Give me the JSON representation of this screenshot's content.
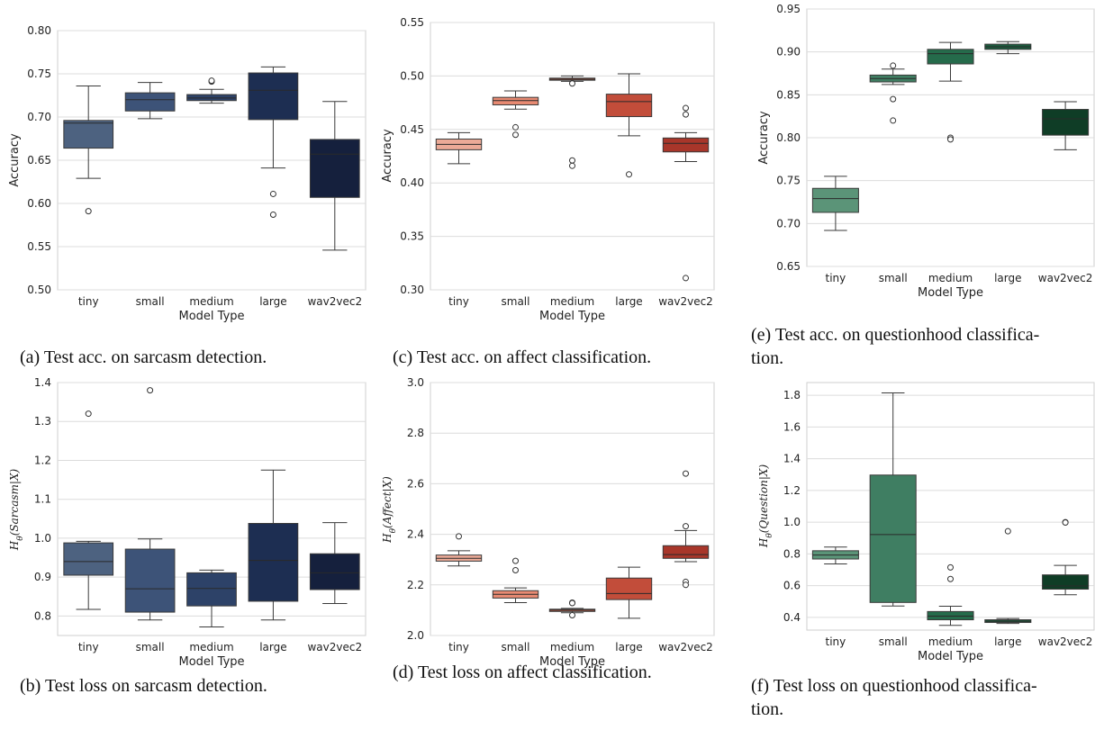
{
  "figure": {
    "captions": [
      {
        "id": "a",
        "lines": [
          "(a) Test acc. on sarcasm detection."
        ]
      },
      {
        "id": "b",
        "lines": [
          "(b) Test loss on sarcasm detection."
        ]
      },
      {
        "id": "c",
        "lines": [
          "(c) Test acc. on affect classification."
        ]
      },
      {
        "id": "d",
        "lines": [
          "(d) Test loss on affect classification."
        ]
      },
      {
        "id": "e",
        "lines": [
          "(e) Test acc. on questionhood classifica-",
          "tion."
        ]
      },
      {
        "id": "f",
        "lines": [
          "(f) Test loss on questionhood classifica-",
          "tion."
        ]
      }
    ]
  },
  "chart_data": [
    {
      "id": "a",
      "type": "box",
      "xlabel": "Model Type",
      "ylabel": "Accuracy",
      "ylim": [
        0.5,
        0.8
      ],
      "yticks": [
        0.5,
        0.55,
        0.6,
        0.65,
        0.7,
        0.75,
        0.8
      ],
      "ytick_labels": [
        "0.50",
        "0.55",
        "0.60",
        "0.65",
        "0.70",
        "0.75",
        "0.80"
      ],
      "grid": true,
      "categories": [
        "tiny",
        "small",
        "medium",
        "large",
        "wav2vec2"
      ],
      "colors": [
        "#4d6280",
        "#3d5378",
        "#2d4268",
        "#1d2e52",
        "#15203d"
      ],
      "boxes": [
        {
          "whislo": 0.629,
          "q1": 0.664,
          "med": 0.693,
          "q3": 0.696,
          "whishi": 0.736,
          "fliers": [
            0.591
          ]
        },
        {
          "whislo": 0.698,
          "q1": 0.707,
          "med": 0.72,
          "q3": 0.728,
          "whishi": 0.74,
          "fliers": []
        },
        {
          "whislo": 0.716,
          "q1": 0.719,
          "med": 0.722,
          "q3": 0.726,
          "whishi": 0.732,
          "fliers": [
            0.741,
            0.742
          ]
        },
        {
          "whislo": 0.641,
          "q1": 0.697,
          "med": 0.731,
          "q3": 0.751,
          "whishi": 0.758,
          "fliers": [
            0.611,
            0.587
          ]
        },
        {
          "whislo": 0.546,
          "q1": 0.607,
          "med": 0.657,
          "q3": 0.674,
          "whishi": 0.718,
          "fliers": []
        }
      ]
    },
    {
      "id": "b",
      "type": "box",
      "xlabel": "Model Type",
      "ylabel": "H_θ(Sarcasm|X)",
      "ylim": [
        0.75,
        1.4
      ],
      "yticks": [
        0.8,
        0.9,
        1.0,
        1.1,
        1.2,
        1.3,
        1.4
      ],
      "ytick_labels": [
        "0.8",
        "0.9",
        "1.0",
        "1.1",
        "1.2",
        "1.3",
        "1.4"
      ],
      "grid": true,
      "categories": [
        "tiny",
        "small",
        "medium",
        "large",
        "wav2vec2"
      ],
      "colors": [
        "#4d6280",
        "#3d5378",
        "#2d4268",
        "#1d2e52",
        "#15203d"
      ],
      "boxes": [
        {
          "whislo": 0.817,
          "q1": 0.905,
          "med": 0.94,
          "q3": 0.988,
          "whishi": 0.992,
          "fliers": [
            1.32
          ]
        },
        {
          "whislo": 0.79,
          "q1": 0.81,
          "med": 0.87,
          "q3": 0.972,
          "whishi": 0.998,
          "fliers": [
            1.38
          ]
        },
        {
          "whislo": 0.772,
          "q1": 0.826,
          "med": 0.871,
          "q3": 0.911,
          "whishi": 0.918,
          "fliers": []
        },
        {
          "whislo": 0.79,
          "q1": 0.838,
          "med": 0.943,
          "q3": 1.038,
          "whishi": 1.175,
          "fliers": []
        },
        {
          "whislo": 0.832,
          "q1": 0.868,
          "med": 0.911,
          "q3": 0.96,
          "whishi": 1.04,
          "fliers": []
        }
      ]
    },
    {
      "id": "c",
      "type": "box",
      "xlabel": "Model Type",
      "ylabel": "Accuracy",
      "ylim": [
        0.3,
        0.55
      ],
      "yticks": [
        0.3,
        0.35,
        0.4,
        0.45,
        0.5,
        0.55
      ],
      "ytick_labels": [
        "0.30",
        "0.35",
        "0.40",
        "0.45",
        "0.50",
        "0.55"
      ],
      "grid": true,
      "categories": [
        "tiny",
        "small",
        "medium",
        "large",
        "wav2vec2"
      ],
      "colors": [
        "#ecaa97",
        "#e88a72",
        "#d7664c",
        "#c24d3a",
        "#a8362a"
      ],
      "boxes": [
        {
          "whislo": 0.418,
          "q1": 0.431,
          "med": 0.436,
          "q3": 0.441,
          "whishi": 0.447,
          "fliers": []
        },
        {
          "whislo": 0.469,
          "q1": 0.473,
          "med": 0.477,
          "q3": 0.48,
          "whishi": 0.486,
          "fliers": [
            0.452,
            0.445
          ]
        },
        {
          "whislo": 0.495,
          "q1": 0.496,
          "med": 0.497,
          "q3": 0.498,
          "whishi": 0.5,
          "fliers": [
            0.493,
            0.421,
            0.416
          ]
        },
        {
          "whislo": 0.444,
          "q1": 0.462,
          "med": 0.476,
          "q3": 0.483,
          "whishi": 0.502,
          "fliers": [
            0.408
          ]
        },
        {
          "whislo": 0.42,
          "q1": 0.429,
          "med": 0.437,
          "q3": 0.442,
          "whishi": 0.447,
          "fliers": [
            0.47,
            0.464,
            0.311
          ]
        }
      ]
    },
    {
      "id": "d",
      "type": "box",
      "xlabel": "Model Type",
      "ylabel": "H_θ(Affect|X)",
      "ylim": [
        2.0,
        3.0
      ],
      "yticks": [
        2.0,
        2.2,
        2.4,
        2.6,
        2.8,
        3.0
      ],
      "ytick_labels": [
        "2.0",
        "2.2",
        "2.4",
        "2.6",
        "2.8",
        "3.0"
      ],
      "grid": true,
      "categories": [
        "tiny",
        "small",
        "medium",
        "large",
        "wav2vec2"
      ],
      "colors": [
        "#ecaa97",
        "#e88a72",
        "#d7664c",
        "#c24d3a",
        "#a8362a"
      ],
      "boxes": [
        {
          "whislo": 2.275,
          "q1": 2.294,
          "med": 2.305,
          "q3": 2.318,
          "whishi": 2.335,
          "fliers": [
            2.392
          ]
        },
        {
          "whislo": 2.13,
          "q1": 2.148,
          "med": 2.163,
          "q3": 2.177,
          "whishi": 2.188,
          "fliers": [
            2.295,
            2.258
          ]
        },
        {
          "whislo": 2.09,
          "q1": 2.095,
          "med": 2.1,
          "q3": 2.104,
          "whishi": 2.107,
          "fliers": [
            2.13,
            2.128,
            2.08
          ]
        },
        {
          "whislo": 2.068,
          "q1": 2.142,
          "med": 2.166,
          "q3": 2.227,
          "whishi": 2.27,
          "fliers": []
        },
        {
          "whislo": 2.292,
          "q1": 2.305,
          "med": 2.32,
          "q3": 2.355,
          "whishi": 2.415,
          "fliers": [
            2.64,
            2.432,
            2.212,
            2.2
          ]
        }
      ]
    },
    {
      "id": "e",
      "type": "box",
      "xlabel": "Model Type",
      "ylabel": "Accuracy",
      "ylim": [
        0.65,
        0.95
      ],
      "yticks": [
        0.65,
        0.7,
        0.75,
        0.8,
        0.85,
        0.9,
        0.95
      ],
      "ytick_labels": [
        "0.65",
        "0.70",
        "0.75",
        "0.80",
        "0.85",
        "0.90",
        "0.95"
      ],
      "grid": true,
      "categories": [
        "tiny",
        "small",
        "medium",
        "large",
        "wav2vec2"
      ],
      "colors": [
        "#5b9478",
        "#3f7e62",
        "#256b4b",
        "#1a5c3d",
        "#0f3d26"
      ],
      "boxes": [
        {
          "whislo": 0.692,
          "q1": 0.713,
          "med": 0.729,
          "q3": 0.741,
          "whishi": 0.755,
          "fliers": []
        },
        {
          "whislo": 0.862,
          "q1": 0.865,
          "med": 0.869,
          "q3": 0.873,
          "whishi": 0.88,
          "fliers": [
            0.884,
            0.845,
            0.82
          ]
        },
        {
          "whislo": 0.866,
          "q1": 0.886,
          "med": 0.898,
          "q3": 0.903,
          "whishi": 0.911,
          "fliers": [
            0.8,
            0.798
          ]
        },
        {
          "whislo": 0.898,
          "q1": 0.903,
          "med": 0.906,
          "q3": 0.909,
          "whishi": 0.912,
          "fliers": []
        },
        {
          "whislo": 0.786,
          "q1": 0.803,
          "med": 0.822,
          "q3": 0.833,
          "whishi": 0.842,
          "fliers": []
        }
      ]
    },
    {
      "id": "f",
      "type": "box",
      "xlabel": "Model Type",
      "ylabel": "H_θ(Question|X)",
      "ylim": [
        0.32,
        1.88
      ],
      "yticks": [
        0.4,
        0.6,
        0.8,
        1.0,
        1.2,
        1.4,
        1.6,
        1.8
      ],
      "ytick_labels": [
        "0.4",
        "0.6",
        "0.8",
        "1.0",
        "1.2",
        "1.4",
        "1.6",
        "1.8"
      ],
      "grid": true,
      "categories": [
        "tiny",
        "small",
        "medium",
        "large",
        "wav2vec2"
      ],
      "colors": [
        "#5b9478",
        "#3f7e62",
        "#256b4b",
        "#1a5c3d",
        "#0f3d26"
      ],
      "boxes": [
        {
          "whislo": 0.737,
          "q1": 0.768,
          "med": 0.793,
          "q3": 0.82,
          "whishi": 0.843,
          "fliers": []
        },
        {
          "whislo": 0.472,
          "q1": 0.494,
          "med": 0.922,
          "q3": 1.297,
          "whishi": 1.815,
          "fliers": []
        },
        {
          "whislo": 0.35,
          "q1": 0.385,
          "med": 0.408,
          "q3": 0.437,
          "whishi": 0.47,
          "fliers": [
            0.715,
            0.642
          ]
        },
        {
          "whislo": 0.362,
          "q1": 0.368,
          "med": 0.376,
          "q3": 0.385,
          "whishi": 0.393,
          "fliers": [
            0.943
          ]
        },
        {
          "whislo": 0.543,
          "q1": 0.578,
          "med": 0.598,
          "q3": 0.668,
          "whishi": 0.728,
          "fliers": [
            1.0,
            0.998
          ]
        }
      ]
    }
  ]
}
